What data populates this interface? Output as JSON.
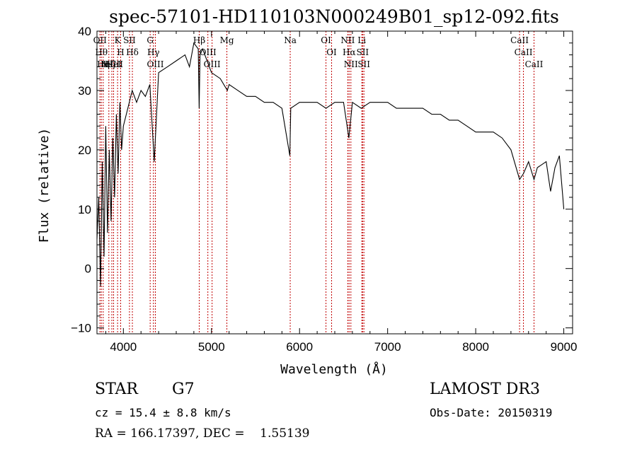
{
  "chart_data": {
    "type": "line",
    "title": "spec-57101-HD110103N000249B01_sp12-092.fits",
    "xlabel": "Wavelength (Å)",
    "ylabel": "Flux (relative)",
    "xlim": [
      3700,
      9100
    ],
    "ylim": [
      -11,
      40
    ],
    "xticks": [
      4000,
      5000,
      6000,
      7000,
      8000,
      9000
    ],
    "yticks": [
      -10,
      0,
      10,
      20,
      30,
      40
    ],
    "line_color": "#000000",
    "marker_color": "#c00000",
    "series": [
      {
        "x": [
          3700,
          3720,
          3740,
          3760,
          3780,
          3800,
          3820,
          3840,
          3860,
          3880,
          3900,
          3920,
          3940,
          3960,
          3980,
          4000,
          4050,
          4100,
          4150,
          4200,
          4250,
          4300,
          4350,
          4400,
          4500,
          4600,
          4700,
          4750,
          4800,
          4850,
          4860,
          4870,
          4900,
          4950,
          5000,
          5100,
          5180,
          5200,
          5300,
          5400,
          5500,
          5600,
          5700,
          5800,
          5890,
          5900,
          6000,
          6100,
          6200,
          6300,
          6400,
          6500,
          6560,
          6600,
          6700,
          6800,
          6900,
          7000,
          7100,
          7200,
          7300,
          7400,
          7500,
          7600,
          7700,
          7800,
          7900,
          8000,
          8100,
          8200,
          8300,
          8400,
          8498,
          8542,
          8600,
          8662,
          8700,
          8800,
          8850,
          8900,
          8950,
          9000
        ],
        "y": [
          5,
          12,
          -3,
          18,
          2,
          24,
          6,
          20,
          8,
          22,
          12,
          26,
          16,
          28,
          20,
          24,
          27,
          30,
          28,
          30,
          29,
          31,
          18,
          33,
          34,
          35,
          36,
          34,
          38,
          37,
          27,
          36,
          37,
          35,
          33,
          32,
          30,
          31,
          30,
          29,
          29,
          28,
          28,
          27,
          19,
          27,
          28,
          28,
          28,
          27,
          28,
          28,
          22,
          28,
          27,
          28,
          28,
          28,
          27,
          27,
          27,
          27,
          26,
          26,
          25,
          25,
          24,
          23,
          23,
          23,
          22,
          20,
          15,
          16,
          18,
          15,
          17,
          18,
          13,
          17,
          19,
          10
        ]
      }
    ],
    "lines": [
      {
        "x": 3734,
        "labels": [
          "OII"
        ]
      },
      {
        "x": 3750,
        "labels": [
          "Hθ"
        ]
      },
      {
        "x": 3771,
        "labels": [
          "Hη"
        ]
      },
      {
        "x": 3835,
        "labels": [
          "Hζ"
        ]
      },
      {
        "x": 3869,
        "labels": [
          "NeIII"
        ]
      },
      {
        "x": 3889,
        "labels": [
          "HeI"
        ]
      },
      {
        "x": 3934,
        "labels": [
          "K"
        ]
      },
      {
        "x": 3969,
        "labels": [
          "H"
        ]
      },
      {
        "x": 4069,
        "labels": [
          "SII"
        ]
      },
      {
        "x": 4102,
        "labels": [
          "Hδ"
        ]
      },
      {
        "x": 4304,
        "labels": [
          "G"
        ]
      },
      {
        "x": 4341,
        "labels": [
          "Hγ"
        ]
      },
      {
        "x": 4363,
        "labels": [
          "OIII"
        ]
      },
      {
        "x": 4861,
        "labels": [
          "Hβ"
        ]
      },
      {
        "x": 4959,
        "labels": [
          "OIII"
        ]
      },
      {
        "x": 5007,
        "labels": [
          "OIII"
        ]
      },
      {
        "x": 5175,
        "labels": [
          "Mg"
        ]
      },
      {
        "x": 5894,
        "labels": [
          "Na"
        ]
      },
      {
        "x": 6300,
        "labels": [
          "OI"
        ]
      },
      {
        "x": 6364,
        "labels": [
          "OI"
        ]
      },
      {
        "x": 6548,
        "labels": [
          "NII"
        ]
      },
      {
        "x": 6563,
        "labels": [
          "Hα"
        ]
      },
      {
        "x": 6583,
        "labels": [
          "NII"
        ]
      },
      {
        "x": 6707,
        "labels": [
          "Li"
        ]
      },
      {
        "x": 6716,
        "labels": [
          "SII"
        ]
      },
      {
        "x": 6731,
        "labels": [
          "SII"
        ]
      },
      {
        "x": 8498,
        "labels": [
          "CaII"
        ]
      },
      {
        "x": 8542,
        "labels": [
          "CaII"
        ]
      },
      {
        "x": 8662,
        "labels": [
          "CaII"
        ]
      }
    ]
  },
  "footer": {
    "object_class": "STAR",
    "subclass": "G7",
    "survey": "LAMOST DR3",
    "cz_text": "cz = 15.4 ± 8.8 km/s",
    "obs_date_text": "Obs-Date: 20150319",
    "coords_text": "RA = 166.17397, DEC =    1.55139"
  }
}
